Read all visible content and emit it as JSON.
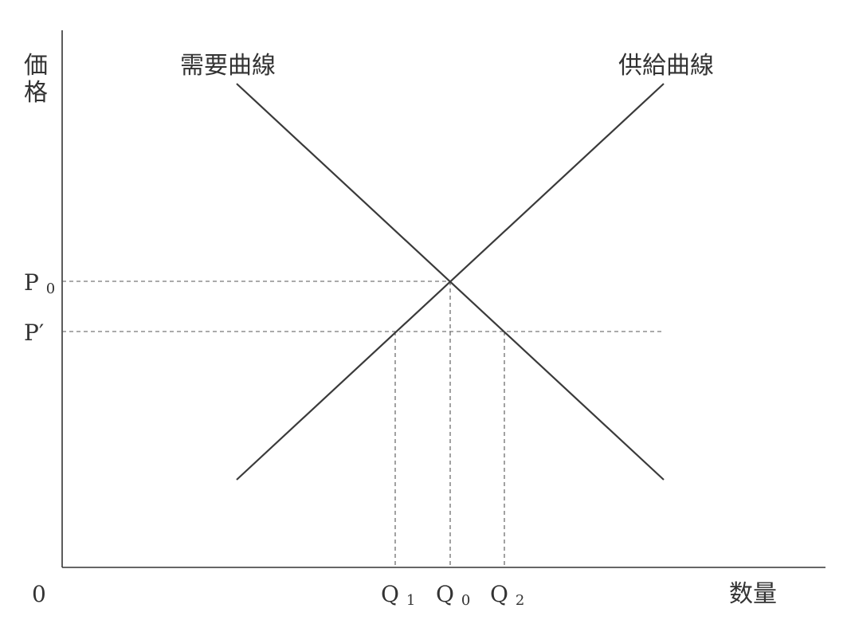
{
  "axes": {
    "origin_label": "0",
    "x_axis_label": "数量",
    "y_axis_label_chars": [
      "価",
      "格"
    ]
  },
  "curves": {
    "demand": {
      "label": "需要曲線"
    },
    "supply": {
      "label": "供給曲線"
    }
  },
  "price_levels": [
    {
      "main": "P",
      "sub": "0"
    },
    {
      "main": "P′",
      "sub": ""
    }
  ],
  "quantity_levels": [
    {
      "main": "Q",
      "sub": "1"
    },
    {
      "main": "Q",
      "sub": "0"
    },
    {
      "main": "Q",
      "sub": "2"
    }
  ],
  "colors": {
    "ink": "#333333",
    "background": "#ffffff"
  }
}
